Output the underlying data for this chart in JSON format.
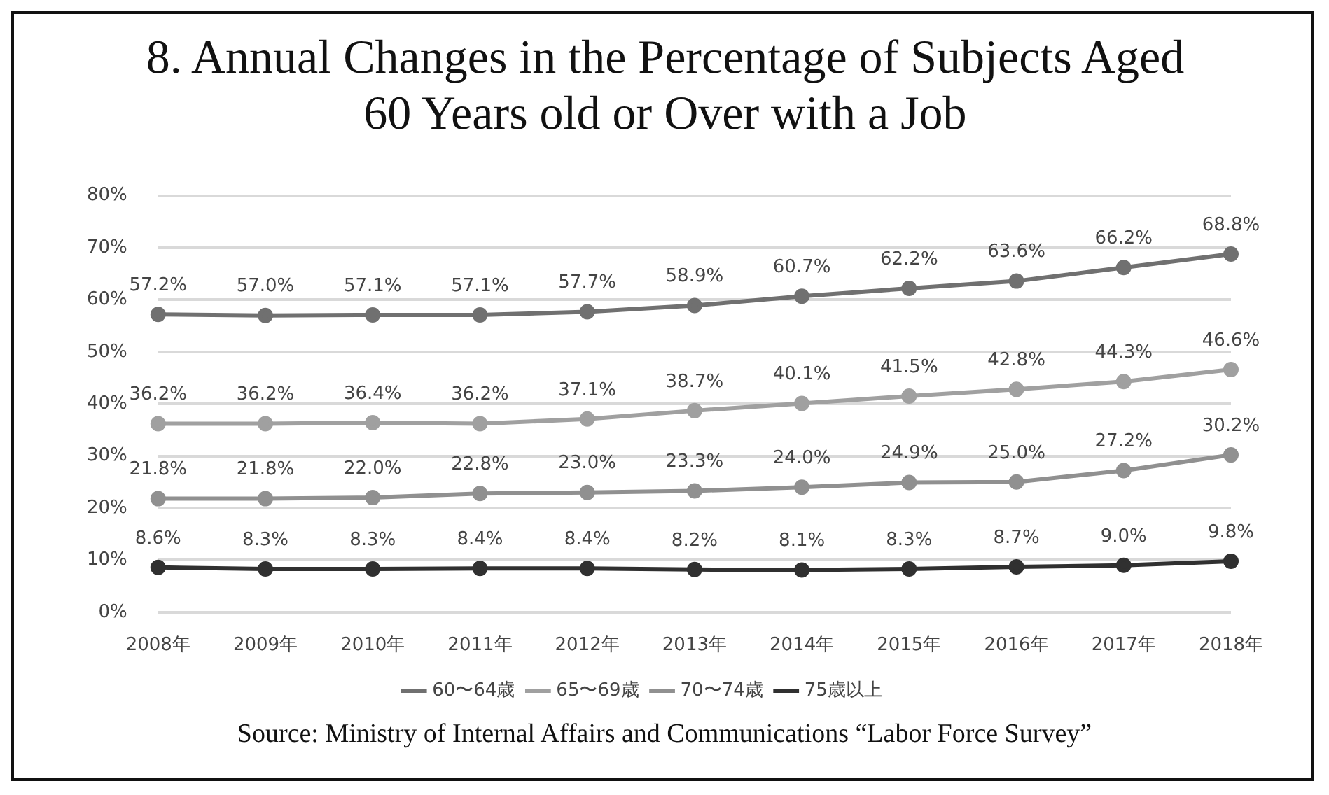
{
  "chart_data": {
    "type": "line",
    "title": "8. Annual Changes in the Percentage of Subjects Aged 60 Years old or Over with a Job",
    "categories": [
      "2008年",
      "2009年",
      "2010年",
      "2011年",
      "2012年",
      "2013年",
      "2014年",
      "2015年",
      "2016年",
      "2017年",
      "2018年"
    ],
    "series": [
      {
        "name": "60〜64歳",
        "color": "#707070",
        "values": [
          57.2,
          57.0,
          57.1,
          57.1,
          57.7,
          58.9,
          60.7,
          62.2,
          63.6,
          66.2,
          68.8
        ],
        "value_labels": [
          "57.2%",
          "57.0%",
          "57.1%",
          "57.1%",
          "57.7%",
          "58.9%",
          "60.7%",
          "62.2%",
          "63.6%",
          "66.2%",
          "68.8%"
        ]
      },
      {
        "name": "65〜69歳",
        "color": "#a0a0a0",
        "values": [
          36.2,
          36.2,
          36.4,
          36.2,
          37.1,
          38.7,
          40.1,
          41.5,
          42.8,
          44.3,
          46.6
        ],
        "value_labels": [
          "36.2%",
          "36.2%",
          "36.4%",
          "36.2%",
          "37.1%",
          "38.7%",
          "40.1%",
          "41.5%",
          "42.8%",
          "44.3%",
          "46.6%"
        ]
      },
      {
        "name": "70〜74歳",
        "color": "#909090",
        "values": [
          21.8,
          21.8,
          22.0,
          22.8,
          23.0,
          23.3,
          24.0,
          24.9,
          25.0,
          27.2,
          30.2
        ],
        "value_labels": [
          "21.8%",
          "21.8%",
          "22.0%",
          "22.8%",
          "23.0%",
          "23.3%",
          "24.0%",
          "24.9%",
          "25.0%",
          "27.2%",
          "30.2%"
        ]
      },
      {
        "name": "75歳以上",
        "color": "#303030",
        "values": [
          8.6,
          8.3,
          8.3,
          8.4,
          8.4,
          8.2,
          8.1,
          8.3,
          8.7,
          9.0,
          9.8
        ],
        "value_labels": [
          "8.6%",
          "8.3%",
          "8.3%",
          "8.4%",
          "8.4%",
          "8.2%",
          "8.1%",
          "8.3%",
          "8.7%",
          "9.0%",
          "9.8%"
        ]
      }
    ],
    "ylim": [
      0,
      80
    ],
    "yticks": [
      {
        "value": 0,
        "label": "0%"
      },
      {
        "value": 10,
        "label": "10%"
      },
      {
        "value": 20,
        "label": "20%"
      },
      {
        "value": 30,
        "label": "30%"
      },
      {
        "value": 40,
        "label": "40%"
      },
      {
        "value": 50,
        "label": "50%"
      },
      {
        "value": 60,
        "label": "60%"
      },
      {
        "value": 70,
        "label": "70%"
      },
      {
        "value": 80,
        "label": "80%"
      }
    ],
    "grid": "y",
    "legend": "bottom",
    "marker": "circle",
    "line_style": "solid",
    "annotations": [
      "Source: Ministry of Internal Affairs and Communications “Labor Force Survey”"
    ]
  }
}
